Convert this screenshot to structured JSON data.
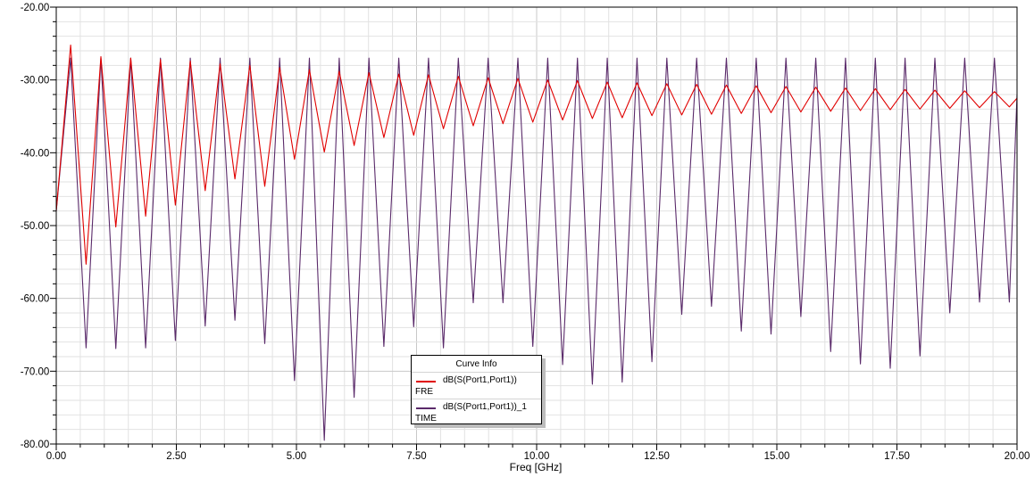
{
  "chart_data": {
    "type": "line",
    "xlabel": "Freq [GHz]",
    "ylabel": "",
    "xlim": [
      0,
      20
    ],
    "ylim": [
      -80,
      -20
    ],
    "x_ticks": [
      "0.00",
      "2.50",
      "5.00",
      "7.50",
      "10.00",
      "12.50",
      "15.00",
      "17.50",
      "20.00"
    ],
    "y_ticks": [
      "-20.00",
      "-30.00",
      "-40.00",
      "-50.00",
      "-60.00",
      "-70.00",
      "-80.00"
    ],
    "grid": true,
    "legend": {
      "title": "Curve Info",
      "placement": "bottom-center",
      "items": [
        {
          "name": "dB(S(Port1,Port1))",
          "sub": "FRE"
        },
        {
          "name": "dB(S(Port1,Port1))_1",
          "sub": "TIME"
        }
      ]
    },
    "series": [
      {
        "name": "dB(S(Port1,Port1))",
        "color": "#e00000",
        "x": [
          0.0,
          0.3,
          0.62,
          0.93,
          1.24,
          1.55,
          1.86,
          2.17,
          2.48,
          2.79,
          3.1,
          3.41,
          3.72,
          4.03,
          4.34,
          4.65,
          4.96,
          5.27,
          5.58,
          5.89,
          6.2,
          6.51,
          6.82,
          7.13,
          7.44,
          7.75,
          8.06,
          8.37,
          8.68,
          8.99,
          9.3,
          9.61,
          9.92,
          10.23,
          10.54,
          10.85,
          11.16,
          11.47,
          11.78,
          12.09,
          12.4,
          12.71,
          13.02,
          13.33,
          13.64,
          13.95,
          14.26,
          14.57,
          14.88,
          15.19,
          15.5,
          15.81,
          16.12,
          16.43,
          16.74,
          17.05,
          17.36,
          17.67,
          17.98,
          18.29,
          18.6,
          18.91,
          19.22,
          19.53,
          19.84,
          20.0
        ],
        "y": [
          -48,
          -25.2,
          -55.3,
          -26.8,
          -50.2,
          -27.0,
          -48.7,
          -27.2,
          -47.2,
          -27.4,
          -45.2,
          -27.8,
          -43.6,
          -28.0,
          -44.6,
          -28.3,
          -40.9,
          -28.6,
          -39.9,
          -28.8,
          -39.0,
          -29.0,
          -37.9,
          -29.2,
          -37.6,
          -29.3,
          -36.7,
          -29.5,
          -36.3,
          -29.7,
          -36.0,
          -29.8,
          -35.8,
          -30.0,
          -35.5,
          -30.1,
          -35.3,
          -30.3,
          -35.2,
          -30.4,
          -34.9,
          -30.5,
          -34.8,
          -30.6,
          -34.7,
          -30.7,
          -34.6,
          -30.8,
          -34.5,
          -30.9,
          -34.4,
          -31.0,
          -34.3,
          -31.1,
          -34.2,
          -31.2,
          -34.1,
          -31.3,
          -34.0,
          -31.4,
          -33.9,
          -31.5,
          -33.8,
          -31.6,
          -33.7,
          -32.5
        ]
      },
      {
        "name": "dB(S(Port1,Port1))_1",
        "color": "#5a2a6a",
        "x": [
          0.0,
          0.3,
          0.62,
          0.93,
          1.24,
          1.55,
          1.86,
          2.17,
          2.48,
          2.79,
          3.1,
          3.41,
          3.72,
          4.03,
          4.34,
          4.65,
          4.96,
          5.27,
          5.58,
          5.89,
          6.2,
          6.51,
          6.82,
          7.13,
          7.44,
          7.75,
          8.06,
          8.37,
          8.68,
          8.99,
          9.3,
          9.61,
          9.92,
          10.23,
          10.54,
          10.85,
          11.16,
          11.47,
          11.78,
          12.09,
          12.4,
          12.71,
          13.02,
          13.33,
          13.64,
          13.95,
          14.26,
          14.57,
          14.88,
          15.19,
          15.5,
          15.81,
          16.12,
          16.43,
          16.74,
          17.05,
          17.36,
          17.67,
          17.98,
          18.29,
          18.6,
          18.91,
          19.22,
          19.53,
          19.84,
          20.0
        ],
        "y": [
          -48,
          -27.0,
          -66.8,
          -27.0,
          -66.9,
          -27.0,
          -66.8,
          -27.0,
          -65.8,
          -27.0,
          -63.8,
          -27.0,
          -63.0,
          -27.0,
          -66.2,
          -27.0,
          -71.3,
          -27.0,
          -79.5,
          -27.0,
          -73.6,
          -27.0,
          -66.6,
          -27.0,
          -63.9,
          -27.0,
          -66.8,
          -27.0,
          -60.6,
          -27.0,
          -60.6,
          -27.0,
          -66.6,
          -27.0,
          -69.1,
          -27.0,
          -71.8,
          -27.0,
          -71.5,
          -27.0,
          -68.7,
          -27.0,
          -62.2,
          -27.0,
          -61.1,
          -27.0,
          -64.5,
          -27.0,
          -64.9,
          -27.0,
          -62.5,
          -27.0,
          -67.3,
          -27.0,
          -69.0,
          -27.0,
          -69.6,
          -27.0,
          -67.9,
          -27.0,
          -62.0,
          -27.0,
          -60.5,
          -27.0,
          -60.5,
          -32.0
        ]
      }
    ]
  }
}
